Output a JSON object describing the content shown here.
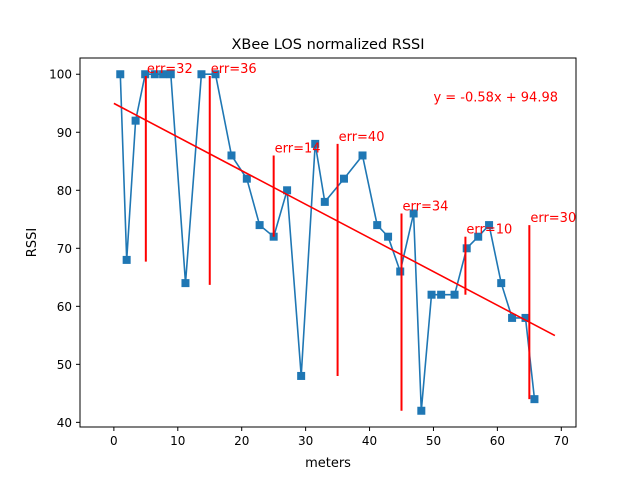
{
  "chart_data": {
    "type": "line",
    "title": "XBee LOS normalized RSSI",
    "xlabel": "meters",
    "ylabel": "RSSI",
    "xlim": [
      -5.3,
      72.3
    ],
    "ylim": [
      39.2,
      102.8
    ],
    "xticks": [
      0,
      10,
      20,
      30,
      40,
      50,
      60,
      70
    ],
    "xtick_labels": [
      "0",
      "10",
      "20",
      "30",
      "40",
      "50",
      "60",
      "70"
    ],
    "yticks": [
      40,
      50,
      60,
      70,
      80,
      90,
      100
    ],
    "ytick_labels": [
      "40",
      "50",
      "60",
      "70",
      "80",
      "90",
      "100"
    ],
    "grid": false,
    "series": [
      {
        "marker": "square",
        "color": "#1f77b4",
        "x": [
          1.0,
          2.0,
          3.4,
          4.9,
          6.4,
          7.7,
          8.9,
          11.2,
          13.7,
          15.9,
          18.4,
          20.8,
          22.8,
          25.0,
          27.1,
          29.3,
          31.5,
          33.0,
          36.0,
          38.9,
          41.2,
          42.9,
          44.8,
          46.9,
          48.1,
          49.7,
          51.2,
          53.3,
          55.2,
          57.0,
          58.7,
          60.6,
          62.3,
          64.4,
          65.8
        ],
        "y": [
          100,
          68,
          92,
          100,
          100,
          100,
          100,
          64,
          100,
          100,
          86,
          82,
          74,
          72,
          80,
          48,
          88,
          78,
          82,
          86,
          74,
          72,
          66,
          76,
          42,
          62,
          62,
          62,
          70,
          72,
          74,
          64,
          58,
          58,
          44
        ]
      }
    ],
    "fit_line": {
      "label": "y = -0.58x + 94.98",
      "slope": -0.58,
      "intercept": 94.98,
      "x_range": [
        0,
        69
      ],
      "color": "#ff0000"
    },
    "error_bars": [
      {
        "x": 5,
        "y_low": 67.7,
        "y_high": 99.7,
        "label": "err=32"
      },
      {
        "x": 15,
        "y_low": 63.7,
        "y_high": 99.7,
        "label": "err=36"
      },
      {
        "x": 25,
        "y_low": 72.0,
        "y_high": 86.0,
        "label": "err=14"
      },
      {
        "x": 35,
        "y_low": 48.0,
        "y_high": 88.0,
        "label": "err=40"
      },
      {
        "x": 45,
        "y_low": 42.0,
        "y_high": 76.0,
        "label": "err=34"
      },
      {
        "x": 55,
        "y_low": 62.0,
        "y_high": 72.0,
        "label": "err=10"
      },
      {
        "x": 65,
        "y_low": 44.0,
        "y_high": 74.0,
        "label": "err=30"
      }
    ]
  }
}
